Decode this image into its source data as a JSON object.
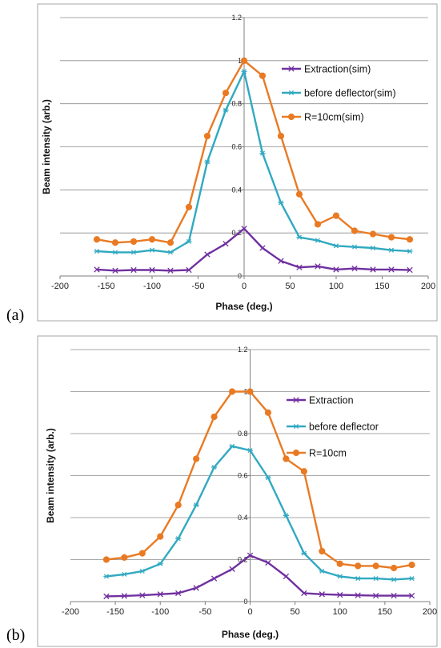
{
  "panels": [
    {
      "label": "(a)",
      "chart_data": {
        "type": "line",
        "title": "",
        "xlabel": "Phase (deg.)",
        "ylabel": "Beam intensity (arb.)",
        "xlim": [
          -200,
          200
        ],
        "ylim": [
          0,
          1.2
        ],
        "xticks": [
          -200,
          -150,
          -100,
          -50,
          0,
          50,
          100,
          150,
          200
        ],
        "yticks": [
          0,
          0.2,
          0.4,
          0.6,
          0.8,
          1,
          1.2
        ],
        "grid": true,
        "legend_position": "top-right",
        "series": [
          {
            "name": "Extraction(sim)",
            "color": "#7030a0",
            "marker": "x",
            "x": [
              -160,
              -140,
              -120,
              -100,
              -80,
              -60,
              -40,
              -20,
              0,
              20,
              40,
              60,
              80,
              100,
              120,
              140,
              160,
              180
            ],
            "y": [
              0.03,
              0.025,
              0.028,
              0.028,
              0.025,
              0.028,
              0.1,
              0.15,
              0.22,
              0.13,
              0.07,
              0.04,
              0.045,
              0.03,
              0.035,
              0.03,
              0.03,
              0.028
            ]
          },
          {
            "name": "before deflector(sim)",
            "color": "#31a9c1",
            "marker": "star",
            "x": [
              -160,
              -140,
              -120,
              -100,
              -80,
              -60,
              -40,
              -20,
              0,
              20,
              40,
              60,
              80,
              100,
              120,
              140,
              160,
              180
            ],
            "y": [
              0.115,
              0.11,
              0.11,
              0.12,
              0.11,
              0.16,
              0.53,
              0.77,
              0.95,
              0.57,
              0.34,
              0.18,
              0.165,
              0.14,
              0.135,
              0.13,
              0.12,
              0.115
            ]
          },
          {
            "name": "R=10cm(sim)",
            "color": "#e97a23",
            "marker": "circle",
            "x": [
              -160,
              -140,
              -120,
              -100,
              -80,
              -60,
              -40,
              -20,
              0,
              20,
              40,
              60,
              80,
              100,
              120,
              140,
              160,
              180
            ],
            "y": [
              0.17,
              0.155,
              0.16,
              0.17,
              0.155,
              0.32,
              0.65,
              0.85,
              1.0,
              0.93,
              0.65,
              0.38,
              0.24,
              0.28,
              0.21,
              0.195,
              0.18,
              0.17
            ]
          }
        ]
      }
    },
    {
      "label": "(b)",
      "chart_data": {
        "type": "line",
        "title": "",
        "xlabel": "Phase (deg.)",
        "ylabel": "Beam intensity (arb.)",
        "xlim": [
          -200,
          200
        ],
        "ylim": [
          0,
          1.2
        ],
        "xticks": [
          -200,
          -150,
          -100,
          -50,
          0,
          50,
          100,
          150,
          200
        ],
        "yticks": [
          0,
          0.2,
          0.4,
          0.6,
          0.8,
          1,
          1.2
        ],
        "grid": true,
        "legend_position": "top-right",
        "series": [
          {
            "name": "Extraction",
            "color": "#7030a0",
            "marker": "x",
            "x": [
              -160,
              -140,
              -120,
              -100,
              -80,
              -60,
              -40,
              -20,
              0,
              20,
              40,
              60,
              80,
              100,
              120,
              140,
              160,
              180
            ],
            "y": [
              0.025,
              0.027,
              0.03,
              0.035,
              0.04,
              0.065,
              0.11,
              0.155,
              0.22,
              0.185,
              0.12,
              0.04,
              0.035,
              0.032,
              0.03,
              0.028,
              0.028,
              0.028
            ]
          },
          {
            "name": "before deflector",
            "color": "#31a9c1",
            "marker": "star",
            "x": [
              -160,
              -140,
              -120,
              -100,
              -80,
              -60,
              -40,
              -20,
              0,
              20,
              40,
              60,
              80,
              100,
              120,
              140,
              160,
              180
            ],
            "y": [
              0.12,
              0.13,
              0.145,
              0.18,
              0.3,
              0.46,
              0.64,
              0.74,
              0.72,
              0.59,
              0.41,
              0.23,
              0.145,
              0.12,
              0.11,
              0.11,
              0.105,
              0.11
            ]
          },
          {
            "name": "R=10cm",
            "color": "#e97a23",
            "marker": "circle",
            "x": [
              -160,
              -140,
              -120,
              -100,
              -80,
              -60,
              -40,
              -20,
              0,
              20,
              40,
              60,
              80,
              100,
              120,
              140,
              160,
              180
            ],
            "y": [
              0.2,
              0.21,
              0.23,
              0.31,
              0.46,
              0.68,
              0.88,
              1.0,
              1.0,
              0.9,
              0.68,
              0.62,
              0.24,
              0.18,
              0.17,
              0.17,
              0.16,
              0.175
            ]
          }
        ]
      }
    }
  ]
}
